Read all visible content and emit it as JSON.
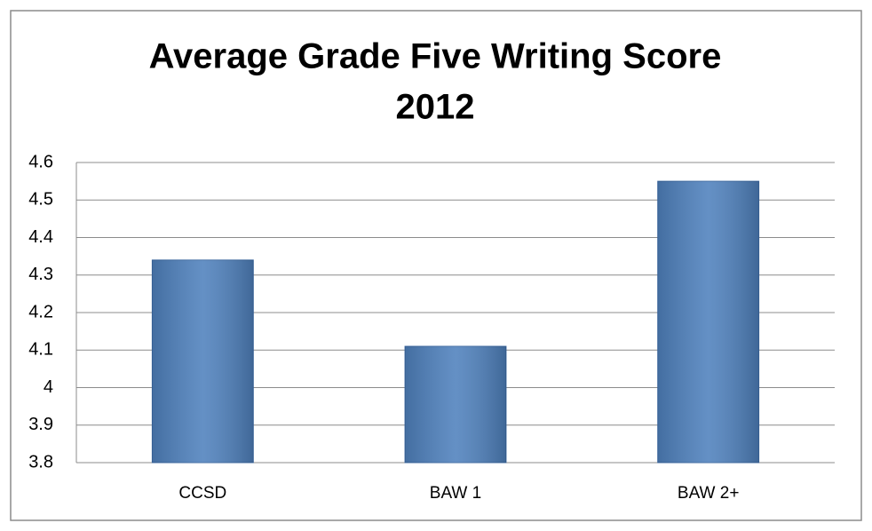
{
  "chart_data": {
    "type": "bar",
    "title": [
      "Average Grade Five Writing Score",
      "2012"
    ],
    "categories": [
      "CCSD",
      "BAW 1",
      "BAW 2+"
    ],
    "values": [
      4.34,
      4.11,
      4.55
    ],
    "color": "#4f81bd",
    "ylim": [
      3.8,
      4.6
    ],
    "yticks": [
      3.8,
      3.9,
      4,
      4.1,
      4.2,
      4.3,
      4.4,
      4.5,
      4.6
    ],
    "grid": true
  }
}
